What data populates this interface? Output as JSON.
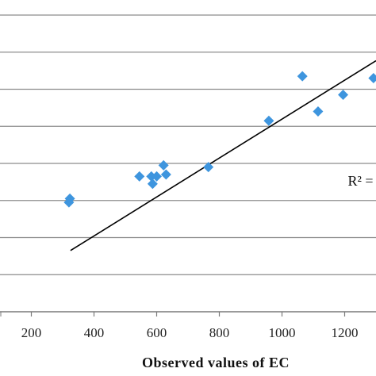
{
  "chart_data": {
    "type": "scatter",
    "title": "",
    "xlabel": "Observed values of EC",
    "ylabel": "",
    "xlim": [
      100,
      1300
    ],
    "ylim": [
      0,
      8
    ],
    "x_ticks": [
      200,
      400,
      600,
      800,
      1000,
      1200
    ],
    "x_tick_labels": [
      "200",
      "400",
      "600",
      "800",
      "1000",
      "1200"
    ],
    "grid": true,
    "grid_axis": "y",
    "grid_lines": [
      1,
      2,
      3,
      4,
      5,
      6,
      7,
      8
    ],
    "marker": "diamond",
    "colors": {
      "points": "#3e95de",
      "trendline": "#000000",
      "grid": "#8c8c8c",
      "axis": "#7a7a7a"
    },
    "series": [
      {
        "points": [
          {
            "x": 323,
            "y": 3.05
          },
          {
            "x": 320,
            "y": 2.95
          },
          {
            "x": 545,
            "y": 3.65
          },
          {
            "x": 583,
            "y": 3.65
          },
          {
            "x": 600,
            "y": 3.65
          },
          {
            "x": 587,
            "y": 3.45
          },
          {
            "x": 622,
            "y": 3.95
          },
          {
            "x": 630,
            "y": 3.7
          },
          {
            "x": 765,
            "y": 3.9
          },
          {
            "x": 958,
            "y": 5.15
          },
          {
            "x": 1065,
            "y": 6.35
          },
          {
            "x": 1115,
            "y": 5.4
          },
          {
            "x": 1195,
            "y": 5.85
          },
          {
            "x": 1292,
            "y": 6.3
          }
        ]
      }
    ],
    "trendline": {
      "x": [
        325,
        1300
      ],
      "y": [
        1.65,
        6.77
      ]
    },
    "annotations": [
      {
        "text": "R² =",
        "x": 1210,
        "y": 3.4
      }
    ]
  }
}
